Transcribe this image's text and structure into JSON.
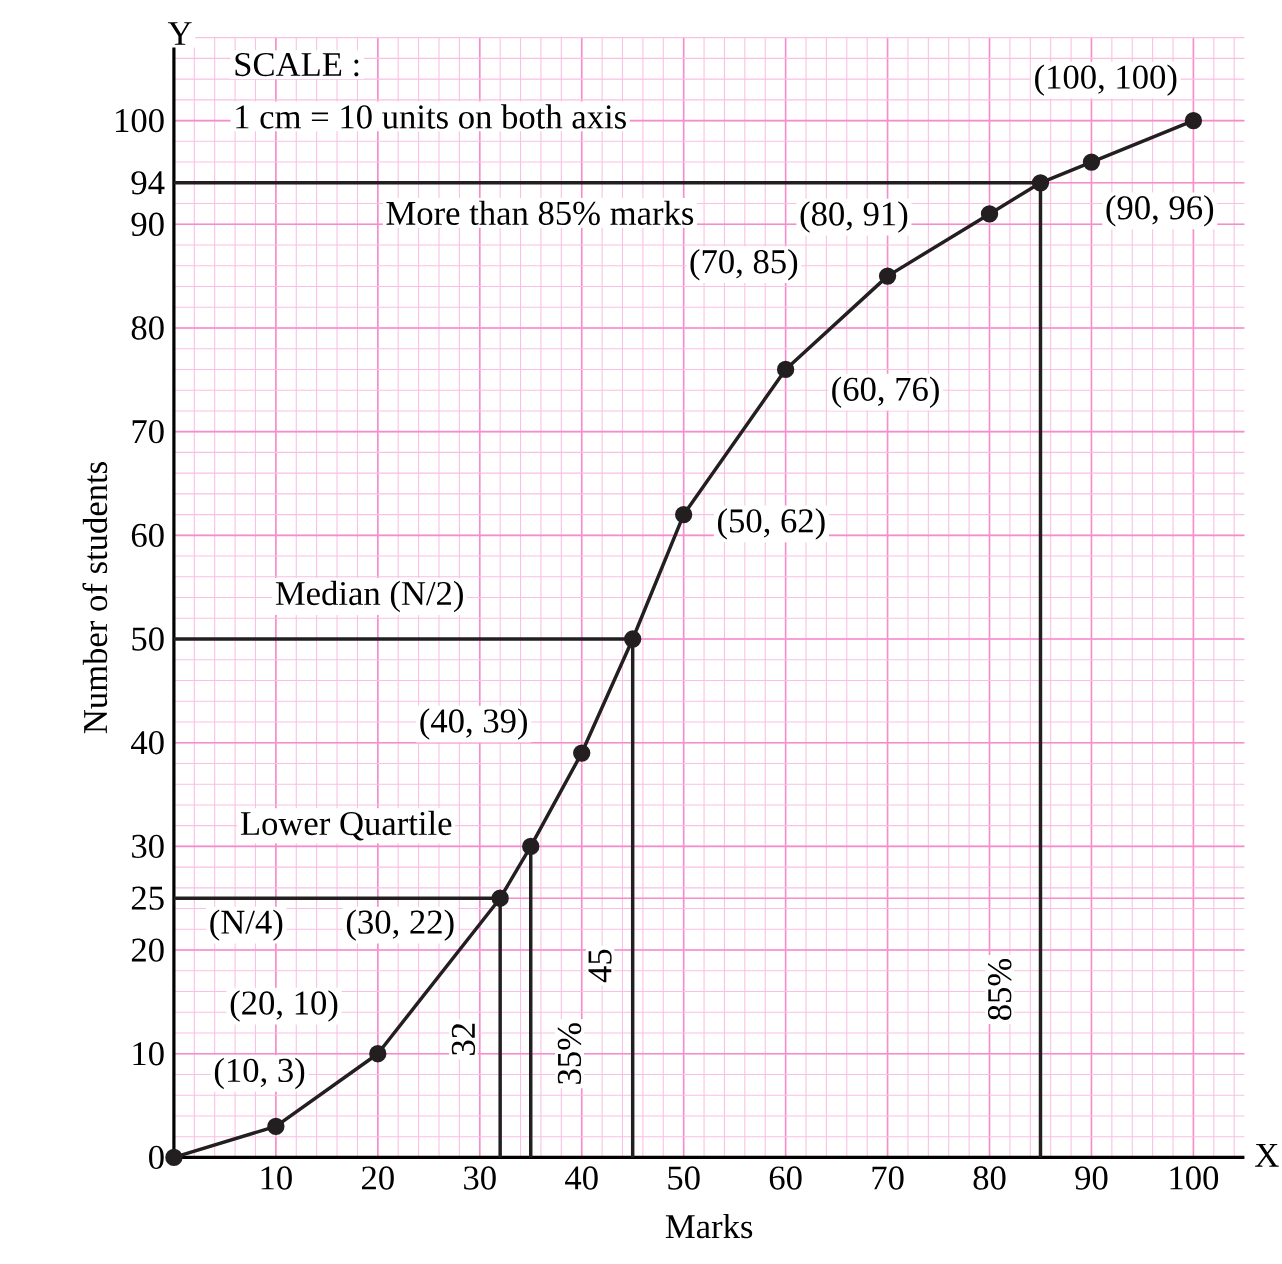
{
  "chart_data": {
    "type": "line",
    "xlabel": "Marks",
    "ylabel": "Number of students",
    "xlim": [
      0,
      105
    ],
    "ylim": [
      0,
      108
    ],
    "xticks": [
      10,
      20,
      30,
      40,
      50,
      60,
      70,
      80,
      90,
      100
    ],
    "yticks": [
      0,
      10,
      20,
      25,
      30,
      40,
      50,
      60,
      70,
      80,
      90,
      94,
      100
    ],
    "grid": true,
    "marker": "circle",
    "series": [
      {
        "x": [
          0,
          10,
          20,
          32,
          35,
          40,
          45,
          50,
          60,
          70,
          80,
          85,
          90,
          100
        ],
        "values": [
          0,
          3,
          10,
          25,
          30,
          39,
          50,
          62,
          76,
          85,
          91,
          94,
          96,
          100
        ],
        "color": "#231f20"
      },
      {
        "x": [
          0,
          32,
          32
        ],
        "values": [
          25,
          25,
          0
        ],
        "color": "#231f20",
        "marker": "none"
      },
      {
        "x": [
          35,
          35
        ],
        "values": [
          30,
          0
        ],
        "color": "#231f20",
        "marker": "none"
      },
      {
        "x": [
          0,
          45,
          45
        ],
        "values": [
          50,
          50,
          0
        ],
        "color": "#231f20",
        "marker": "none"
      },
      {
        "x": [
          0,
          85,
          85
        ],
        "values": [
          94,
          94,
          0
        ],
        "color": "#231f20",
        "marker": "none"
      }
    ],
    "annotations": [
      "SCALE :",
      "1 cm = 10 units on both axis",
      "More than 85% marks",
      "Median (N/2)",
      "Lower Quartile",
      "(N/4)",
      {
        "text": "(10, 3)",
        "x": 10,
        "y": 3
      },
      {
        "text": "(20, 10)",
        "x": 20,
        "y": 10
      },
      {
        "text": "(30, 22)",
        "x": 30,
        "y": 22
      },
      {
        "text": "(40, 39)",
        "x": 40,
        "y": 39
      },
      {
        "text": "(50, 62)",
        "x": 50,
        "y": 62
      },
      {
        "text": "(60, 76)",
        "x": 60,
        "y": 76
      },
      {
        "text": "(70, 85)",
        "x": 70,
        "y": 85
      },
      {
        "text": "(80, 91)",
        "x": 80,
        "y": 91
      },
      {
        "text": "(90, 96)",
        "x": 90,
        "y": 96
      },
      {
        "text": "(100, 100)",
        "x": 100,
        "y": 100
      },
      "32",
      "35%",
      "45",
      "85%",
      "Y",
      "X"
    ]
  }
}
